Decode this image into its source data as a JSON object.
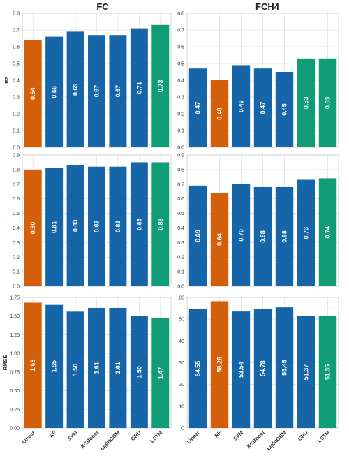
{
  "colors": {
    "highlight_orange": "#d35f0a",
    "standard_blue": "#1565a8",
    "best_green": "#119c78"
  },
  "column_titles": [
    "FC",
    "FCH4"
  ],
  "models": [
    "Linear",
    "RF",
    "SVM",
    "XGBoost",
    "LightGBM",
    "GRU",
    "LSTM"
  ],
  "chart_data": [
    {
      "type": "bar",
      "title": "FC",
      "ylabel": "R2",
      "ylim": [
        0,
        0.8
      ],
      "yticks": [
        "0.0",
        "0.1",
        "0.2",
        "0.3",
        "0.4",
        "0.5",
        "0.6",
        "0.7",
        "0.8"
      ],
      "categories": [
        "Linear",
        "RF",
        "SVM",
        "XGBoost",
        "LightGBM",
        "GRU",
        "LSTM"
      ],
      "values": [
        0.64,
        0.66,
        0.69,
        0.67,
        0.67,
        0.71,
        0.73
      ],
      "labels": [
        "0.64",
        "0.66",
        "0.69",
        "0.67",
        "0.67",
        "0.71",
        "0.73"
      ],
      "bar_colors": [
        "orange",
        "blue",
        "blue",
        "blue",
        "blue",
        "blue",
        "green"
      ],
      "grid": true
    },
    {
      "type": "bar",
      "title": "FCH4",
      "ylabel": "",
      "ylim": [
        0,
        0.8
      ],
      "yticks": [
        "0.0",
        "0.1",
        "0.2",
        "0.3",
        "0.4",
        "0.5",
        "0.6",
        "0.7",
        "0.8"
      ],
      "categories": [
        "Linear",
        "RF",
        "SVM",
        "XGBoost",
        "LightGBM",
        "GRU",
        "LSTM"
      ],
      "values": [
        0.47,
        0.4,
        0.49,
        0.47,
        0.45,
        0.53,
        0.53
      ],
      "labels": [
        "0.47",
        "0.40",
        "0.49",
        "0.47",
        "0.45",
        "0.53",
        "0.53"
      ],
      "bar_colors": [
        "blue",
        "orange",
        "blue",
        "blue",
        "blue",
        "green",
        "green"
      ],
      "grid": true
    },
    {
      "type": "bar",
      "title": "",
      "ylabel": "r",
      "ylim": [
        0,
        0.9
      ],
      "yticks": [
        "0.0",
        "0.1",
        "0.2",
        "0.3",
        "0.4",
        "0.5",
        "0.6",
        "0.7",
        "0.8",
        "0.9"
      ],
      "categories": [
        "Linear",
        "RF",
        "SVM",
        "XGBoost",
        "LightGBM",
        "GRU",
        "LSTM"
      ],
      "values": [
        0.8,
        0.81,
        0.83,
        0.82,
        0.82,
        0.85,
        0.85
      ],
      "labels": [
        "0.80",
        "0.81",
        "0.83",
        "0.82",
        "0.82",
        "0.85",
        "0.85"
      ],
      "bar_colors": [
        "orange",
        "blue",
        "blue",
        "blue",
        "blue",
        "blue",
        "green"
      ],
      "grid": true
    },
    {
      "type": "bar",
      "title": "",
      "ylabel": "",
      "ylim": [
        0,
        0.9
      ],
      "yticks": [
        "0.0",
        "0.1",
        "0.2",
        "0.3",
        "0.4",
        "0.5",
        "0.6",
        "0.7",
        "0.8",
        "0.9"
      ],
      "categories": [
        "Linear",
        "RF",
        "SVM",
        "XGBoost",
        "LightGBM",
        "GRU",
        "LSTM"
      ],
      "values": [
        0.69,
        0.64,
        0.7,
        0.68,
        0.68,
        0.73,
        0.74
      ],
      "labels": [
        "0.69",
        "0.64",
        "0.70",
        "0.68",
        "0.68",
        "0.73",
        "0.74"
      ],
      "bar_colors": [
        "blue",
        "orange",
        "blue",
        "blue",
        "blue",
        "blue",
        "green"
      ],
      "grid": true
    },
    {
      "type": "bar",
      "title": "",
      "ylabel": "RMSE",
      "ylim": [
        0,
        1.75
      ],
      "yticks": [
        "0.00",
        "0.25",
        "0.50",
        "0.75",
        "1.00",
        "1.25",
        "1.50",
        "1.75"
      ],
      "categories": [
        "Linear",
        "RF",
        "SVM",
        "XGBoost",
        "LightGBM",
        "GRU",
        "LSTM"
      ],
      "values": [
        1.68,
        1.65,
        1.56,
        1.61,
        1.61,
        1.5,
        1.47
      ],
      "labels": [
        "1.68",
        "1.65",
        "1.56",
        "1.61",
        "1.61",
        "1.50",
        "1.47"
      ],
      "bar_colors": [
        "orange",
        "blue",
        "blue",
        "blue",
        "blue",
        "blue",
        "green"
      ],
      "grid": true
    },
    {
      "type": "bar",
      "title": "",
      "ylabel": "",
      "ylim": [
        0,
        60
      ],
      "yticks": [
        "0",
        "10",
        "20",
        "30",
        "40",
        "50",
        "60"
      ],
      "categories": [
        "Linear",
        "RF",
        "SVM",
        "XGBoost",
        "LightGBM",
        "GRU",
        "LSTM"
      ],
      "values": [
        54.55,
        58.26,
        53.54,
        54.78,
        55.45,
        51.37,
        51.35
      ],
      "labels": [
        "54.55",
        "58.26",
        "53.54",
        "54.78",
        "55.45",
        "51.37",
        "51.35"
      ],
      "bar_colors": [
        "blue",
        "orange",
        "blue",
        "blue",
        "blue",
        "blue",
        "green"
      ],
      "grid": true
    }
  ]
}
